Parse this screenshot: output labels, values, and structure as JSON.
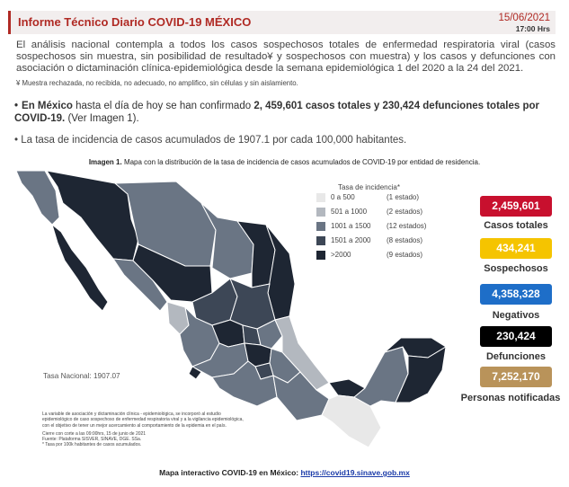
{
  "header": {
    "title": "Informe Técnico Diario COVID-19 MÉXICO",
    "date": "15/06/2021",
    "time": "17:00 Hrs"
  },
  "intro": {
    "text": "El análisis nacional contempla a todos los casos sospechosos totales de enfermedad respiratoria viral (casos sospechosos sin muestra, sin posibilidad de resultado¥ y sospechosos con muestra) y los casos y defunciones con asociación o dictaminación clínica-epidemiológica desde la semana epidemiológica 1 del 2020 a la 24 del 2021.",
    "note": "¥ Muestra rechazada, no recibida, no adecuado, no amplifico, sin células y sin aislamiento."
  },
  "bullets": {
    "b1_bold_lead": "En México",
    "b1_text": " hasta el día de hoy se han confirmado ",
    "b1_bold_figures": "2, 459,601 casos totales y 230,424 defunciones totales por COVID-19.",
    "b1_tail": " (Ver Imagen 1).",
    "b2_text": "La tasa de incidencia de casos acumulados de 1907.1 por cada 100,000 habitantes."
  },
  "map": {
    "caption_bold": "Imagen 1.",
    "caption_text": " Mapa con la distribución de la tasa de incidencia de casos acumulados de COVID-19 por entidad de residencia.",
    "legend_title": "Tasa de incidencia*",
    "legend": [
      {
        "range": "0 a    500",
        "count": "(1 estado)",
        "color": "#e8e8e8"
      },
      {
        "range": "501 a  1000",
        "count": "(2 estados)",
        "color": "#b3b8bf"
      },
      {
        "range": "1001 a  1500",
        "count": "(12 estados)",
        "color": "#6a7584"
      },
      {
        "range": "1501 a  2000",
        "count": "(8 estados)",
        "color": "#3d4756"
      },
      {
        "range": ">2000",
        "count": "(9 estados)",
        "color": "#1e2633"
      }
    ],
    "tasa_nacional": "Tasa Nacional: 1907.07",
    "fineprint": [
      "La variable de asociación y dictaminación clínica - epidemiológica, se incorporó al estudio",
      "epidemiológico de caso sospechoso de enfermedad respiratoria viral y a la vigilancia epidemiológica,",
      "con el objetivo de tener un mejor acercamiento al comportamiento de la epidemia en el país.",
      "Cierre con corte a las 09:00hrs, 15 de junio de 2021",
      "Fuente: Plataforma SISVER, SINAVE, DGE. SSa.",
      "* Tasa por 100k habitantes de casos acumulados."
    ]
  },
  "stats": [
    {
      "value": "2,459,601",
      "label": "Casos totales",
      "color": "#c8102e"
    },
    {
      "value": "434,241",
      "label": "Sospechosos",
      "color": "#f5c400"
    },
    {
      "value": "4,358,328",
      "label": "Negativos",
      "color": "#1e6ec8"
    },
    {
      "value": "230,424",
      "label": "Defunciones",
      "color": "#000000"
    },
    {
      "value": "7,252,170",
      "label": "Personas notificadas",
      "color": "#b9935a"
    }
  ],
  "footer": {
    "text": "Mapa interactivo COVID-19 en México: ",
    "link": "https://covid19.sinave.gob.mx"
  }
}
